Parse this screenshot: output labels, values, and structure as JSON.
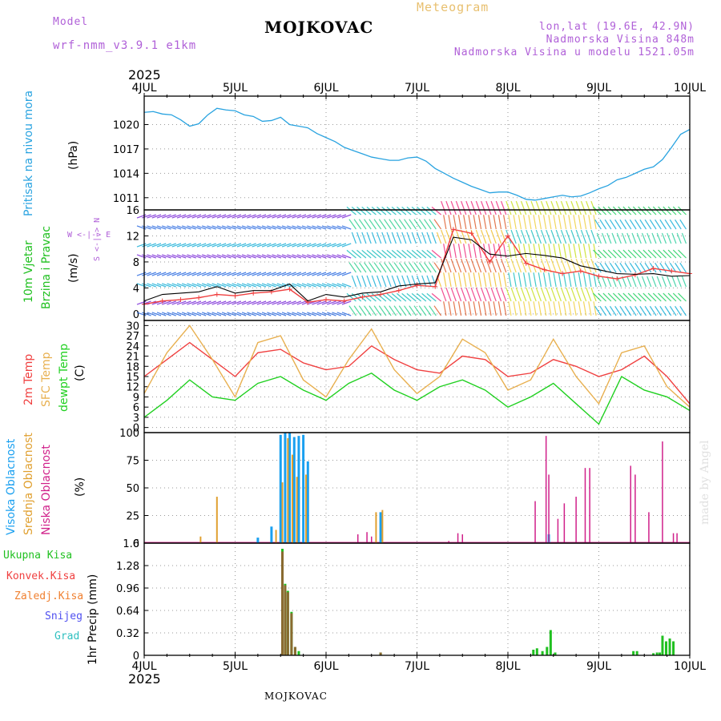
{
  "header": {
    "model_label": "Model",
    "model_name": "wrf-nmm_v3.9.1 e1km",
    "station": "MOJKOVAC",
    "meteogram": "Meteogram",
    "coords": "lon,lat (19.6E, 42.9N)",
    "elevation": "Nadmorska Visina 848m",
    "model_elevation": "Nadmorska Visina u modelu 1521.05m",
    "year_top": "2025",
    "year_bottom": "2025",
    "footer_station": "MOJKOVAC",
    "credit": "made by Angel"
  },
  "axis": {
    "days": [
      "4JUL",
      "5JUL",
      "6JUL",
      "7JUL",
      "8JUL",
      "9JUL",
      "10JUL"
    ]
  },
  "panel_labels": {
    "pressure": {
      "title": "Pritisak na nivou mora",
      "unit": "(hPa)"
    },
    "wind": {
      "title1": "10m Vjetar",
      "title2": "Brzina i Pravac",
      "unit": "(m/s)",
      "compass": "W <-|-> E",
      "compass2": "S <-|-> N"
    },
    "temp": {
      "t2m": "2m Temp",
      "sfc": "SFC Temp",
      "dew": "dewpt Temp",
      "unit": "(C)"
    },
    "cloud": {
      "high": "Visoka Oblacnost",
      "mid": "Srednja Oblacnost",
      "low": "Niska Oblacnost",
      "unit": "(%)"
    },
    "precip": {
      "total": "Ukupna Kisa",
      "conv": "Konvek.Kisa",
      "frozen": "Zaledj.Kisa",
      "snow": "Snijeg",
      "hail": "Grad",
      "unit": "1hr Precip (mm)"
    }
  },
  "colors": {
    "pressure": "#29a3e0",
    "t2m": "#f04040",
    "sfc": "#e8b050",
    "dew": "#20d020",
    "high": "#1aa0f0",
    "mid": "#e0a030",
    "low": "#d0208a",
    "total": "#20c020",
    "conv": "#f04040",
    "frozen": "#f08030",
    "snow": "#5050f0",
    "hail": "#30c0c0",
    "purple": "#b060d8",
    "gold": "#e8c070"
  },
  "chart_data": [
    {
      "type": "line",
      "name": "pressure",
      "ylabel": "(hPa)",
      "ylim": [
        1009.5,
        1023.5
      ],
      "yticks": [
        1011,
        1014,
        1017,
        1020
      ],
      "x": [
        0,
        0.1,
        0.2,
        0.3,
        0.4,
        0.5,
        0.6,
        0.7,
        0.8,
        0.9,
        1.0,
        1.1,
        1.2,
        1.3,
        1.4,
        1.5,
        1.6,
        1.7,
        1.8,
        1.9,
        2.0,
        2.1,
        2.2,
        2.3,
        2.4,
        2.5,
        2.6,
        2.7,
        2.8,
        2.9,
        3.0,
        3.1,
        3.2,
        3.3,
        3.4,
        3.5,
        3.6,
        3.7,
        3.8,
        3.9,
        4.0,
        4.1,
        4.2,
        4.3,
        4.4,
        4.5,
        4.6,
        4.7,
        4.8,
        4.9,
        5.0,
        5.1,
        5.2,
        5.3,
        5.4,
        5.5,
        5.6,
        5.7,
        5.8,
        5.9,
        6.0
      ],
      "y": [
        1021.5,
        1021.6,
        1021.3,
        1021.2,
        1020.6,
        1019.8,
        1020.1,
        1021.2,
        1022.0,
        1021.8,
        1021.7,
        1021.2,
        1021.0,
        1020.4,
        1020.5,
        1020.9,
        1020.0,
        1019.8,
        1019.6,
        1018.9,
        1018.4,
        1017.9,
        1017.2,
        1016.8,
        1016.4,
        1016.0,
        1015.8,
        1015.6,
        1015.6,
        1015.9,
        1016.0,
        1015.5,
        1014.6,
        1014.0,
        1013.4,
        1012.9,
        1012.4,
        1012.0,
        1011.6,
        1011.7,
        1011.7,
        1011.3,
        1010.8,
        1010.7,
        1010.9,
        1011.1,
        1011.3,
        1011.1,
        1011.2,
        1011.6,
        1012.1,
        1012.5,
        1013.2,
        1013.5,
        1014.0,
        1014.5,
        1014.8,
        1015.7,
        1017.2,
        1018.8,
        1019.4
      ]
    },
    {
      "type": "line",
      "name": "wind",
      "ylabel": "(m/s)",
      "ylim": [
        -1,
        16
      ],
      "yticks": [
        0,
        4,
        8,
        12,
        16
      ],
      "x": [
        0,
        0.2,
        0.4,
        0.6,
        0.8,
        1.0,
        1.2,
        1.4,
        1.6,
        1.8,
        2.0,
        2.2,
        2.4,
        2.6,
        2.8,
        3.0,
        3.2,
        3.4,
        3.6,
        3.8,
        4.0,
        4.2,
        4.4,
        4.6,
        4.8,
        5.0,
        5.2,
        5.4,
        5.6,
        5.8,
        6.0
      ],
      "y": [
        2.0,
        3.0,
        3.2,
        3.4,
        4.2,
        3.2,
        3.6,
        3.6,
        4.6,
        2.0,
        3.0,
        2.6,
        3.2,
        3.4,
        4.3,
        4.6,
        4.8,
        11.8,
        11.4,
        9.2,
        8.9,
        9.3,
        9.0,
        8.6,
        7.4,
        6.8,
        6.2,
        6.1,
        6.2,
        5.8,
        5.9
      ],
      "gust": [
        1.5,
        2.0,
        2.2,
        2.5,
        3.0,
        2.8,
        3.2,
        3.4,
        3.8,
        1.8,
        2.2,
        2.0,
        2.6,
        3.0,
        3.6,
        4.4,
        4.2,
        13.0,
        12.4,
        8.0,
        12.0,
        7.8,
        6.8,
        6.2,
        6.6,
        5.8,
        5.4,
        6.0,
        7.0,
        6.6,
        6.2
      ]
    },
    {
      "type": "line",
      "name": "temperature",
      "ylabel": "(C)",
      "ylim": [
        -1.5,
        31.5
      ],
      "yticks": [
        0,
        3,
        6,
        9,
        12,
        15,
        18,
        21,
        24,
        27,
        30
      ],
      "x": [
        0,
        0.25,
        0.5,
        0.75,
        1.0,
        1.25,
        1.5,
        1.75,
        2.0,
        2.25,
        2.5,
        2.75,
        3.0,
        3.25,
        3.5,
        3.75,
        4.0,
        4.25,
        4.5,
        4.75,
        5.0,
        5.25,
        5.5,
        5.75,
        6.0
      ],
      "series": [
        {
          "name": "2m Temp",
          "values": [
            15,
            20,
            25,
            20,
            15,
            22,
            23,
            19,
            17,
            18,
            24,
            20,
            17,
            16,
            21,
            20,
            15,
            16,
            20,
            18,
            15,
            17,
            21,
            15,
            7
          ]
        },
        {
          "name": "SFC Temp",
          "values": [
            10,
            22,
            30,
            20,
            9,
            25,
            27,
            14,
            9,
            20,
            29,
            17,
            10,
            15,
            26,
            22,
            11,
            14,
            26,
            15,
            7,
            22,
            24,
            12,
            6
          ]
        },
        {
          "name": "dewpt Temp",
          "values": [
            3,
            8,
            14,
            9,
            8,
            13,
            15,
            11,
            8,
            13,
            16,
            11,
            8,
            12,
            14,
            11,
            6,
            9,
            13,
            7,
            1,
            15,
            11,
            9,
            5
          ]
        }
      ]
    },
    {
      "type": "bar",
      "name": "cloud",
      "ylabel": "(%)",
      "ylim": [
        0,
        100
      ],
      "yticks": [
        0,
        25,
        50,
        75,
        100
      ],
      "series": [
        {
          "name": "Visoka Oblacnost",
          "x": [
            1.25,
            1.4,
            1.5,
            1.55,
            1.6,
            1.65,
            1.7,
            1.75,
            1.8,
            2.6,
            4.45
          ],
          "values": [
            5,
            15,
            98,
            100,
            100,
            96,
            97,
            98,
            74,
            28,
            8
          ]
        },
        {
          "name": "Srednja Oblacnost",
          "x": [
            0.62,
            0.8,
            1.45,
            1.52,
            1.58,
            1.63,
            1.68,
            1.78,
            2.55,
            2.62
          ],
          "values": [
            6,
            42,
            12,
            55,
            95,
            80,
            60,
            62,
            28,
            30
          ]
        },
        {
          "name": "Niska Oblacnost",
          "x": [
            2.35,
            2.45,
            2.5,
            3.35,
            3.45,
            3.5,
            4.3,
            4.42,
            4.45,
            4.55,
            4.62,
            4.75,
            4.85,
            4.9,
            5.35,
            5.4,
            5.55,
            5.7,
            5.82,
            5.86
          ],
          "values": [
            8,
            10,
            6,
            2,
            9,
            8,
            38,
            97,
            62,
            22,
            36,
            42,
            68,
            68,
            70,
            62,
            28,
            92,
            9,
            9
          ]
        }
      ]
    },
    {
      "type": "bar",
      "name": "precipitation",
      "ylabel": "1hr Precip (mm)",
      "ylim": [
        0,
        1.6
      ],
      "yticks": [
        0,
        0.32,
        0.64,
        0.96,
        1.28,
        1.6
      ],
      "series": [
        {
          "name": "Ukupna Kisa",
          "x": [
            1.52,
            1.55,
            1.58,
            1.62,
            1.66,
            1.7,
            2.6,
            4.28,
            4.32,
            4.38,
            4.43,
            4.47,
            4.52,
            5.38,
            5.42,
            5.6,
            5.64,
            5.67,
            5.7,
            5.74,
            5.78,
            5.82
          ],
          "values": [
            1.52,
            1.02,
            0.92,
            0.62,
            0.12,
            0.06,
            0.04,
            0.08,
            0.1,
            0.06,
            0.12,
            0.36,
            0.04,
            0.06,
            0.06,
            0.03,
            0.04,
            0.04,
            0.28,
            0.2,
            0.24,
            0.2
          ]
        },
        {
          "name": "Konvek.Kisa",
          "x": [
            1.52,
            1.55,
            1.58,
            1.62,
            1.66,
            2.6
          ],
          "values": [
            1.48,
            1.0,
            0.9,
            0.6,
            0.12,
            0.04
          ]
        }
      ]
    }
  ]
}
